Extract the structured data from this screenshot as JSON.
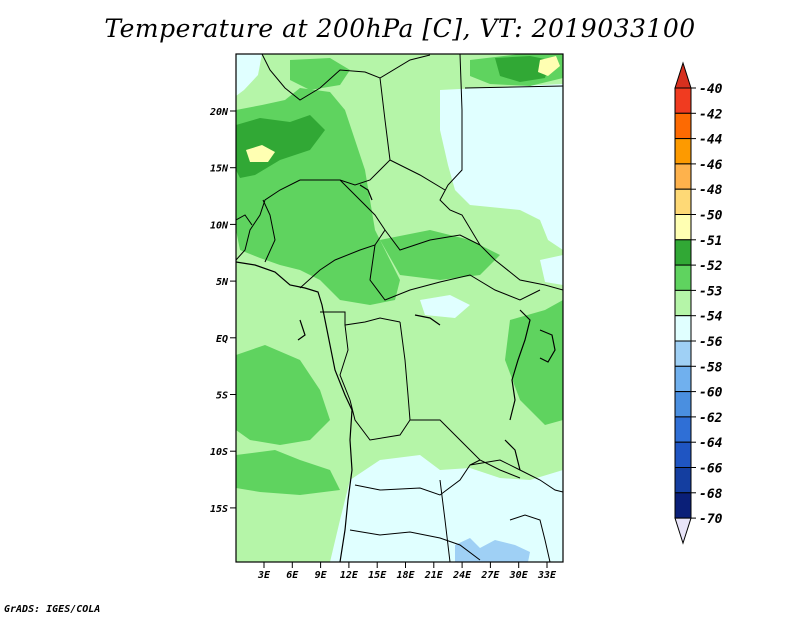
{
  "title": "Temperature at 200hPa [C], VT: 2019033100",
  "credit": "GrADS: IGES/COLA",
  "lat_labels": [
    "20N",
    "15N",
    "10N",
    "5N",
    "EQ",
    "5S",
    "10S",
    "15S"
  ],
  "lon_labels": [
    "3E",
    "6E",
    "9E",
    "12E",
    "15E",
    "18E",
    "21E",
    "24E",
    "27E",
    "30E",
    "33E"
  ],
  "colorbar": {
    "levels": [
      {
        "label": "-40",
        "color": "#d7301f"
      },
      {
        "label": "-42",
        "color": "#f03b20"
      },
      {
        "label": "-44",
        "color": "#fd6a02"
      },
      {
        "label": "-46",
        "color": "#fd9a00"
      },
      {
        "label": "-48",
        "color": "#feb24c"
      },
      {
        "label": "-50",
        "color": "#fed976"
      },
      {
        "label": "-51",
        "color": "#ffffb2"
      },
      {
        "label": "-52",
        "color": "#31a835"
      },
      {
        "label": "-53",
        "color": "#5fd35f"
      },
      {
        "label": "-54",
        "color": "#b5f5a8"
      },
      {
        "label": "-56",
        "color": "#e0ffff"
      },
      {
        "label": "-58",
        "color": "#9fd0f5"
      },
      {
        "label": "-60",
        "color": "#70b0ee"
      },
      {
        "label": "-62",
        "color": "#4a8fe0"
      },
      {
        "label": "-64",
        "color": "#2f6fd6"
      },
      {
        "label": "-66",
        "color": "#1f55c2"
      },
      {
        "label": "-68",
        "color": "#143ea0"
      },
      {
        "label": "-70",
        "color": "#0a1f78"
      }
    ],
    "top_arrow_color": "#d7301f",
    "bottom_arrow_color": "#e8e4f8"
  }
}
